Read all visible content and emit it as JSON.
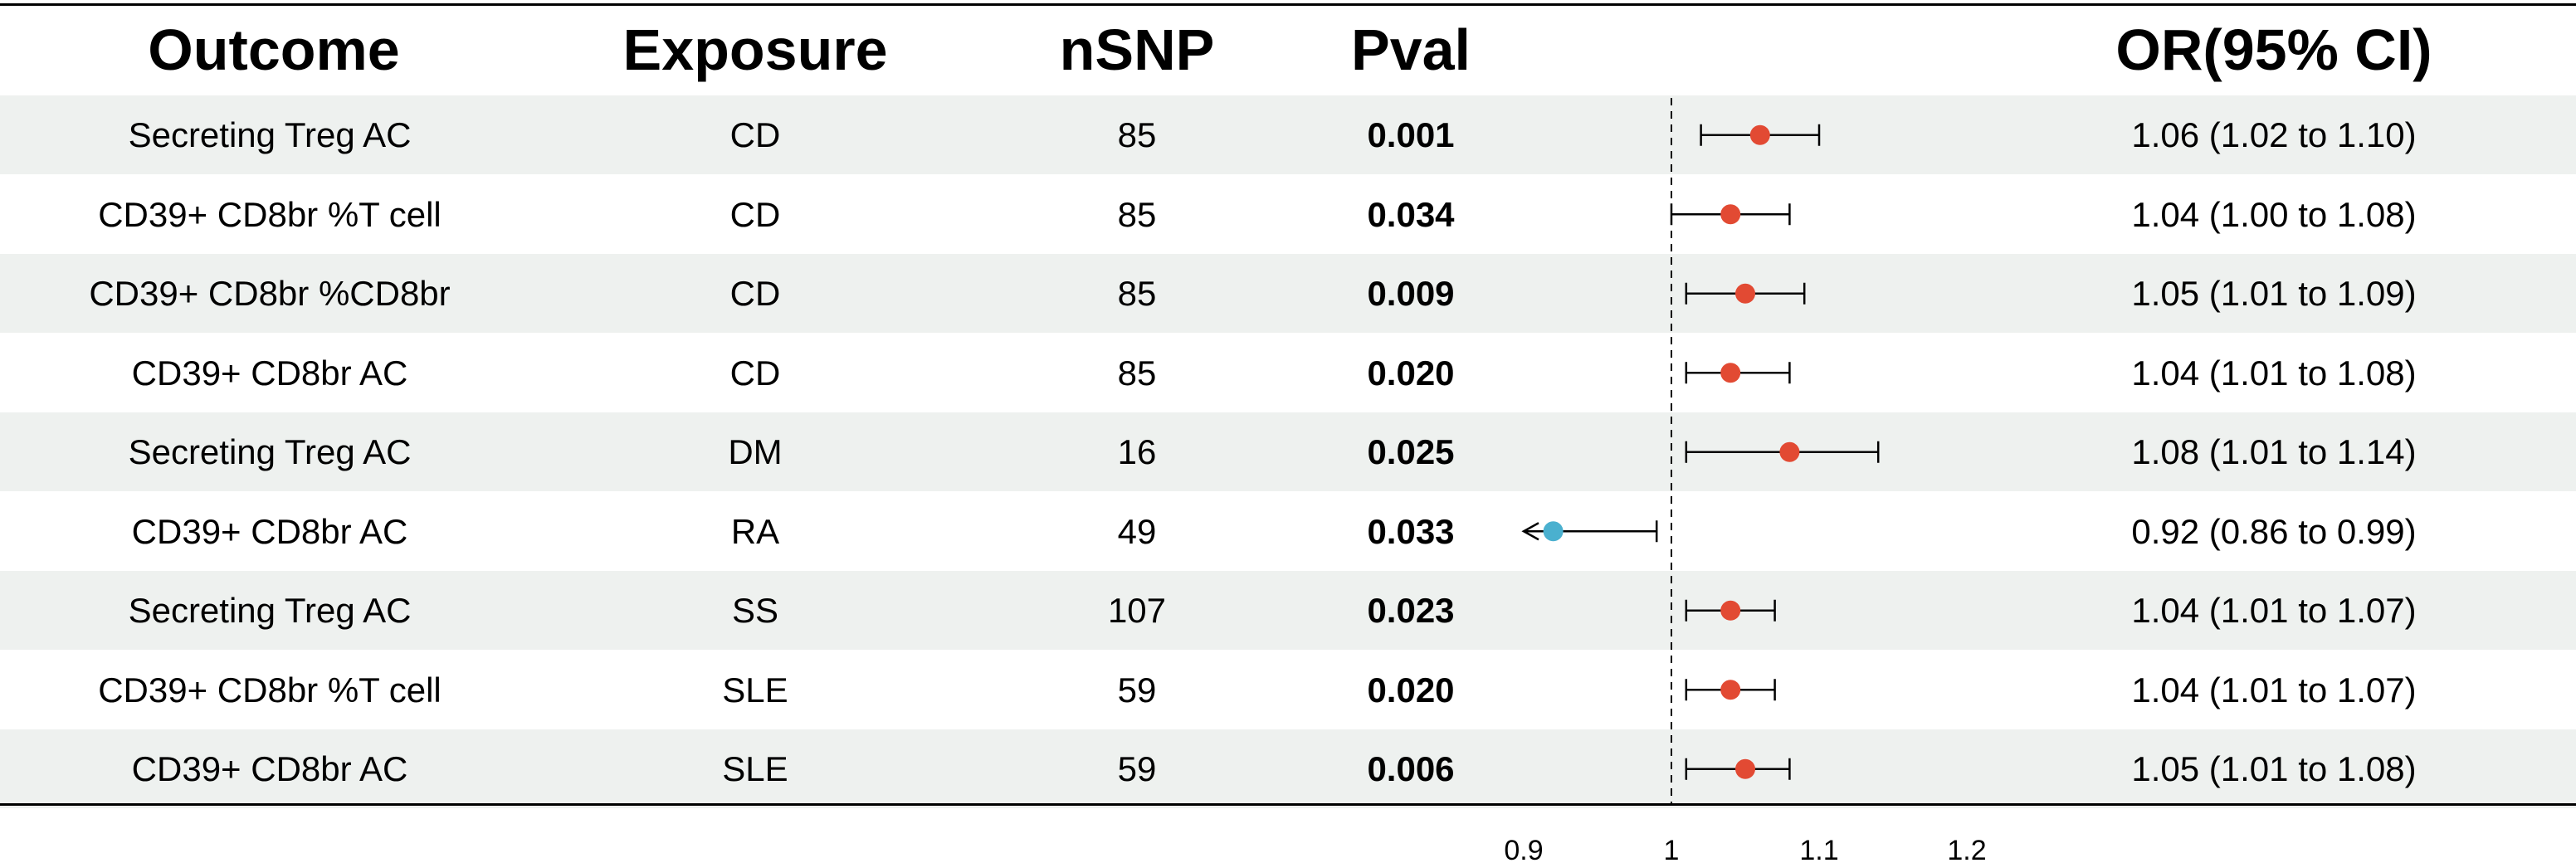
{
  "chart_data": {
    "type": "forest",
    "columns": [
      "Outcome",
      "Exposure",
      "nSNP",
      "Pval",
      "OR(95% CI)"
    ],
    "rows": [
      {
        "outcome": "Secreting Treg AC",
        "exposure": "CD",
        "nsnp": "85",
        "pval": "0.001",
        "or_text": "1.06 (1.02 to 1.10)",
        "or": 1.06,
        "lo": 1.02,
        "hi": 1.1
      },
      {
        "outcome": "CD39+ CD8br %T cell",
        "exposure": "CD",
        "nsnp": "85",
        "pval": "0.034",
        "or_text": "1.04 (1.00 to 1.08)",
        "or": 1.04,
        "lo": 1.0,
        "hi": 1.08
      },
      {
        "outcome": "CD39+ CD8br %CD8br",
        "exposure": "CD",
        "nsnp": "85",
        "pval": "0.009",
        "or_text": "1.05 (1.01 to 1.09)",
        "or": 1.05,
        "lo": 1.01,
        "hi": 1.09
      },
      {
        "outcome": "CD39+ CD8br AC",
        "exposure": "CD",
        "nsnp": "85",
        "pval": "0.020",
        "or_text": "1.04 (1.01 to 1.08)",
        "or": 1.04,
        "lo": 1.01,
        "hi": 1.08
      },
      {
        "outcome": "Secreting Treg AC",
        "exposure": "DM",
        "nsnp": "16",
        "pval": "0.025",
        "or_text": "1.08 (1.01 to 1.14)",
        "or": 1.08,
        "lo": 1.01,
        "hi": 1.14
      },
      {
        "outcome": "CD39+ CD8br AC",
        "exposure": "RA",
        "nsnp": "49",
        "pval": "0.033",
        "or_text": "0.92 (0.86 to 0.99)",
        "or": 0.92,
        "lo": 0.86,
        "hi": 0.99
      },
      {
        "outcome": "Secreting Treg AC",
        "exposure": "SS",
        "nsnp": "107",
        "pval": "0.023",
        "or_text": "1.04 (1.01 to 1.07)",
        "or": 1.04,
        "lo": 1.01,
        "hi": 1.07
      },
      {
        "outcome": "CD39+ CD8br %T cell",
        "exposure": "SLE",
        "nsnp": "59",
        "pval": "0.020",
        "or_text": "1.04 (1.01 to 1.07)",
        "or": 1.04,
        "lo": 1.01,
        "hi": 1.07
      },
      {
        "outcome": "CD39+ CD8br AC",
        "exposure": "SLE",
        "nsnp": "59",
        "pval": "0.006",
        "or_text": "1.05 (1.01 to 1.08)",
        "or": 1.05,
        "lo": 1.01,
        "hi": 1.08
      }
    ],
    "x_ticks": [
      "0.9",
      "1",
      "1.1",
      "1.2"
    ],
    "x_range": [
      0.9,
      1.2
    ],
    "axis_clip": [
      0.9,
      1.2
    ],
    "reference_line": 1,
    "colors": {
      "risk": "#e24a33",
      "protective": "#4ab0cf",
      "row_shade": "#eef1ef"
    }
  }
}
